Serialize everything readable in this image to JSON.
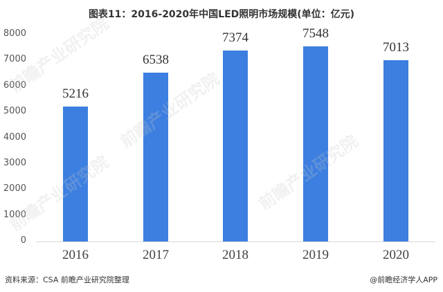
{
  "title": "图表11：2016-2020年中国LED照明市场规模(单位：亿元)",
  "footer": {
    "source": "资料来源：CSA 前瞻产业研究院整理",
    "credit": "@前瞻经济学人APP"
  },
  "watermark": "前瞻产业研究院",
  "colors": {
    "bar": "#3c7fe0",
    "axis": "#d9d9d9"
  },
  "chart_data": {
    "type": "bar",
    "title": "图表11：2016-2020年中国LED照明市场规模(单位：亿元)",
    "categories": [
      "2016",
      "2017",
      "2018",
      "2019",
      "2020"
    ],
    "values": [
      5216,
      6538,
      7374,
      7548,
      7013
    ],
    "data_labels": [
      "5216",
      "6538",
      "7374",
      "7548",
      "7013"
    ],
    "xlabel": "",
    "ylabel": "",
    "ylim": [
      0,
      8000
    ],
    "yticks": [
      "0",
      "1000",
      "2000",
      "3000",
      "4000",
      "5000",
      "6000",
      "7000",
      "8000"
    ],
    "grid": false,
    "legend": null
  }
}
